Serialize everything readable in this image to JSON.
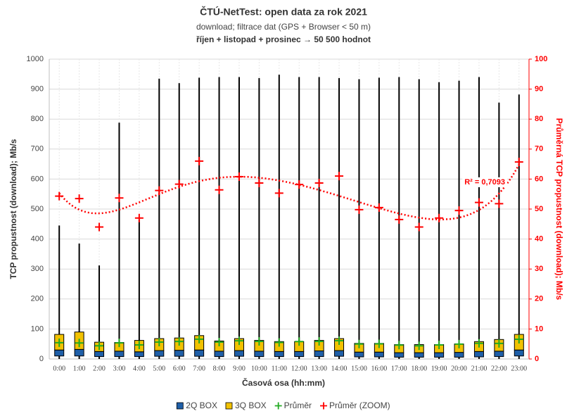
{
  "chart_data": {
    "type": "box",
    "title": "ČTÚ-NetTest: open data za rok 2021",
    "subtitle": "download; filtrace dat (GPS + Browser < 50 m)",
    "subtitle2": "říjen + listopad + prosinec → 50 500 hodnot",
    "x_label": "Časová osa (hh:mm)",
    "y_label": "TCP propustnost (download); Mb/s",
    "y2_label": "Průměrná TCP propustnost (download); Mb/s",
    "annotation": "R² = 0,7093",
    "categories": [
      "0:00",
      "1:00",
      "2:00",
      "3:00",
      "4:00",
      "5:00",
      "6:00",
      "7:00",
      "8:00",
      "9:00",
      "10:00",
      "11:00",
      "12:00",
      "13:00",
      "14:00",
      "15:00",
      "16:00",
      "17:00",
      "18:00",
      "19:00",
      "20:00",
      "21:00",
      "22:00",
      "23:00"
    ],
    "boxes": {
      "min": [
        0,
        0,
        0,
        0,
        0,
        0,
        0,
        0,
        0,
        0,
        0,
        0,
        0,
        0,
        0,
        0,
        0,
        0,
        0,
        0,
        0,
        0,
        0,
        0
      ],
      "q1": [
        10,
        10,
        8,
        8,
        8,
        9,
        9,
        9,
        8,
        9,
        8,
        8,
        8,
        8,
        9,
        7,
        7,
        6,
        6,
        6,
        6,
        7,
        8,
        10
      ],
      "median": [
        30,
        32,
        25,
        26,
        24,
        28,
        29,
        30,
        26,
        28,
        26,
        25,
        25,
        27,
        28,
        23,
        23,
        21,
        21,
        21,
        22,
        25,
        26,
        30
      ],
      "q3": [
        82,
        90,
        56,
        55,
        62,
        68,
        70,
        78,
        60,
        68,
        62,
        58,
        58,
        62,
        68,
        52,
        52,
        48,
        48,
        48,
        50,
        58,
        65,
        82
      ],
      "max": [
        445,
        385,
        312,
        788,
        465,
        935,
        920,
        938,
        940,
        940,
        937,
        948,
        940,
        940,
        937,
        933,
        938,
        940,
        933,
        923,
        928,
        940,
        855,
        882
      ]
    },
    "series": [
      {
        "name": "2Q BOX",
        "color": "#1f5fa8"
      },
      {
        "name": "3Q BOX",
        "color": "#f2c200"
      },
      {
        "name": "Průměr",
        "color": "#22aa22",
        "values": [
          54.3,
          53.5,
          44,
          53.7,
          47,
          56.2,
          58.3,
          66,
          56.4,
          60.8,
          58.7,
          55.3,
          58.2,
          58.7,
          61,
          49.8,
          50.5,
          46.5,
          44,
          47,
          49.5,
          52.2,
          51.8,
          65.7
        ]
      },
      {
        "name": "Průměr (ZOOM)",
        "color": "#ff0000",
        "axis": "y2",
        "values": [
          54.3,
          53.5,
          44,
          53.7,
          47,
          56.2,
          58.3,
          66,
          56.4,
          60.8,
          58.7,
          55.3,
          58.2,
          58.7,
          61,
          49.8,
          50.5,
          46.5,
          44,
          47,
          49.5,
          52.2,
          51.8,
          65.7
        ]
      }
    ],
    "ylim": [
      0,
      1000
    ],
    "yticks": [
      0,
      100,
      200,
      300,
      400,
      500,
      600,
      700,
      800,
      900,
      1000
    ],
    "y2lim": [
      0,
      100
    ],
    "y2ticks": [
      0,
      10,
      20,
      30,
      40,
      50,
      60,
      70,
      80,
      90,
      100
    ],
    "grid": true
  }
}
